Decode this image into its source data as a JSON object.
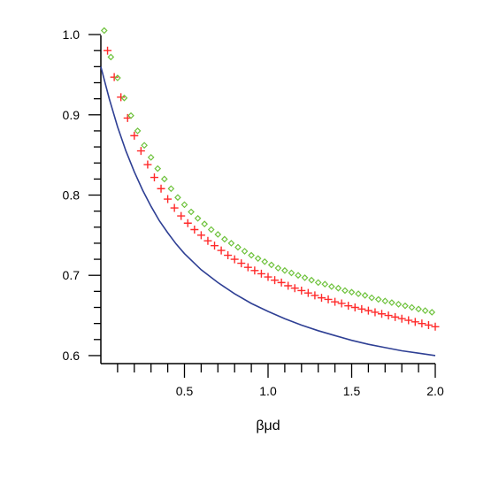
{
  "chart_data": {
    "type": "line",
    "xlabel": "βμd",
    "ylabel": "",
    "title": "",
    "xlim": [
      0.0,
      2.0
    ],
    "ylim": [
      0.59,
      1.01
    ],
    "x_ticks": [
      {
        "value": 0.5,
        "label": "0.5"
      },
      {
        "value": 1.0,
        "label": "1.0"
      },
      {
        "value": 1.5,
        "label": "1.5"
      },
      {
        "value": 2.0,
        "label": "2.0"
      }
    ],
    "y_ticks": [
      {
        "value": 0.6,
        "label": "0.6"
      },
      {
        "value": 0.7,
        "label": "0.7"
      },
      {
        "value": 0.8,
        "label": "0.8"
      },
      {
        "value": 0.9,
        "label": "0.9"
      },
      {
        "value": 1.0,
        "label": "1.0"
      }
    ],
    "x_minor_step": 0.1,
    "y_minor_step": 0.02,
    "grid": false,
    "legend": "none",
    "series": [
      {
        "style": "line",
        "color": "#2e3f94",
        "x": [
          0.0,
          0.05,
          0.1,
          0.15,
          0.2,
          0.25,
          0.3,
          0.35,
          0.4,
          0.45,
          0.5,
          0.6,
          0.7,
          0.8,
          0.9,
          1.0,
          1.1,
          1.2,
          1.3,
          1.4,
          1.5,
          1.6,
          1.7,
          1.8,
          1.9,
          2.0
        ],
        "y": [
          0.96,
          0.92,
          0.885,
          0.855,
          0.829,
          0.806,
          0.786,
          0.768,
          0.753,
          0.739,
          0.727,
          0.707,
          0.691,
          0.677,
          0.665,
          0.655,
          0.646,
          0.638,
          0.631,
          0.625,
          0.619,
          0.614,
          0.61,
          0.606,
          0.603,
          0.6
        ]
      },
      {
        "style": "plus",
        "color": "#ff2a2a",
        "x": [
          0.04,
          0.08,
          0.12,
          0.16,
          0.2,
          0.24,
          0.28,
          0.32,
          0.36,
          0.4,
          0.44,
          0.48,
          0.52,
          0.56,
          0.6,
          0.64,
          0.68,
          0.72,
          0.76,
          0.8,
          0.84,
          0.88,
          0.92,
          0.96,
          1.0,
          1.04,
          1.08,
          1.12,
          1.16,
          1.2,
          1.24,
          1.28,
          1.32,
          1.36,
          1.4,
          1.44,
          1.48,
          1.52,
          1.56,
          1.6,
          1.64,
          1.68,
          1.72,
          1.76,
          1.8,
          1.84,
          1.88,
          1.92,
          1.96,
          2.0
        ],
        "y": [
          0.98,
          0.947,
          0.922,
          0.896,
          0.874,
          0.855,
          0.838,
          0.822,
          0.808,
          0.795,
          0.784,
          0.774,
          0.765,
          0.757,
          0.75,
          0.743,
          0.737,
          0.731,
          0.725,
          0.72,
          0.715,
          0.71,
          0.706,
          0.702,
          0.698,
          0.694,
          0.691,
          0.687,
          0.684,
          0.681,
          0.678,
          0.675,
          0.672,
          0.67,
          0.667,
          0.665,
          0.662,
          0.66,
          0.658,
          0.656,
          0.654,
          0.652,
          0.65,
          0.648,
          0.646,
          0.644,
          0.642,
          0.64,
          0.638,
          0.636
        ]
      },
      {
        "style": "diamond",
        "color": "#6ec23c",
        "x": [
          0.02,
          0.06,
          0.1,
          0.14,
          0.18,
          0.22,
          0.26,
          0.3,
          0.34,
          0.38,
          0.42,
          0.46,
          0.5,
          0.54,
          0.58,
          0.62,
          0.66,
          0.7,
          0.74,
          0.78,
          0.82,
          0.86,
          0.9,
          0.94,
          0.98,
          1.02,
          1.06,
          1.1,
          1.14,
          1.18,
          1.22,
          1.26,
          1.3,
          1.34,
          1.38,
          1.42,
          1.46,
          1.5,
          1.54,
          1.58,
          1.62,
          1.66,
          1.7,
          1.74,
          1.78,
          1.82,
          1.86,
          1.9,
          1.94,
          1.98
        ],
        "y": [
          1.005,
          0.972,
          0.946,
          0.921,
          0.899,
          0.88,
          0.862,
          0.847,
          0.833,
          0.82,
          0.808,
          0.797,
          0.788,
          0.779,
          0.771,
          0.764,
          0.757,
          0.751,
          0.745,
          0.74,
          0.735,
          0.73,
          0.725,
          0.721,
          0.717,
          0.713,
          0.709,
          0.706,
          0.703,
          0.7,
          0.697,
          0.694,
          0.691,
          0.689,
          0.686,
          0.684,
          0.681,
          0.679,
          0.677,
          0.675,
          0.672,
          0.67,
          0.668,
          0.666,
          0.664,
          0.662,
          0.66,
          0.658,
          0.656,
          0.654
        ]
      }
    ]
  }
}
